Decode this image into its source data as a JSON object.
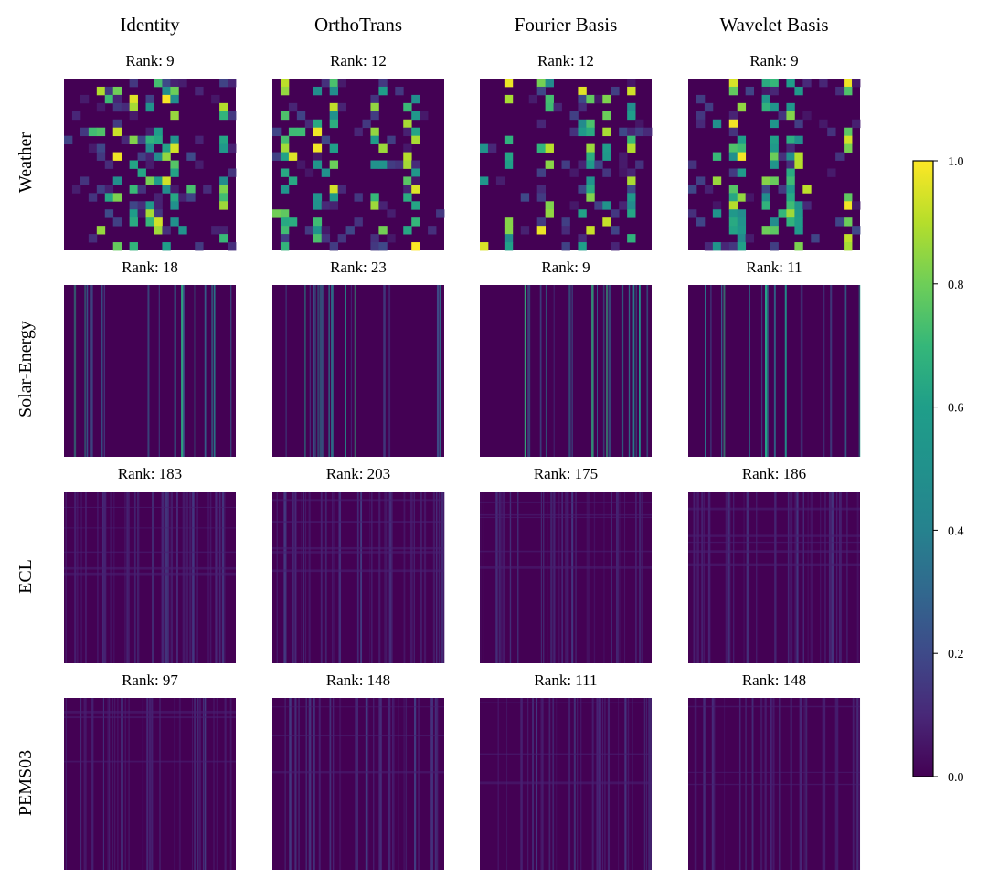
{
  "chart_data": {
    "type": "heatmap",
    "column_titles": [
      "Identity",
      "OrthoTrans",
      "Fourier Basis",
      "Wavelet Basis"
    ],
    "row_labels": [
      "Weather",
      "Solar-Energy",
      "ECL",
      "PEMS03"
    ],
    "rank_label_prefix": "Rank: ",
    "ranks": [
      [
        9,
        12,
        12,
        9
      ],
      [
        18,
        23,
        9,
        11
      ],
      [
        183,
        203,
        175,
        186
      ],
      [
        97,
        148,
        111,
        148
      ]
    ],
    "value_range": [
      0.0,
      1.0
    ],
    "colormap": "viridis",
    "colorbar": {
      "ticks": [
        0.0,
        0.2,
        0.4,
        0.6,
        0.8,
        1.0
      ],
      "tick_labels": [
        "0.0",
        "0.2",
        "0.4",
        "0.6",
        "0.8",
        "1.0"
      ],
      "placement": "right"
    },
    "colors": {
      "viridis_0": "#440154",
      "viridis_025": "#3b528b",
      "viridis_05": "#21918c",
      "viridis_075": "#5ec962",
      "viridis_1": "#fde725"
    }
  }
}
